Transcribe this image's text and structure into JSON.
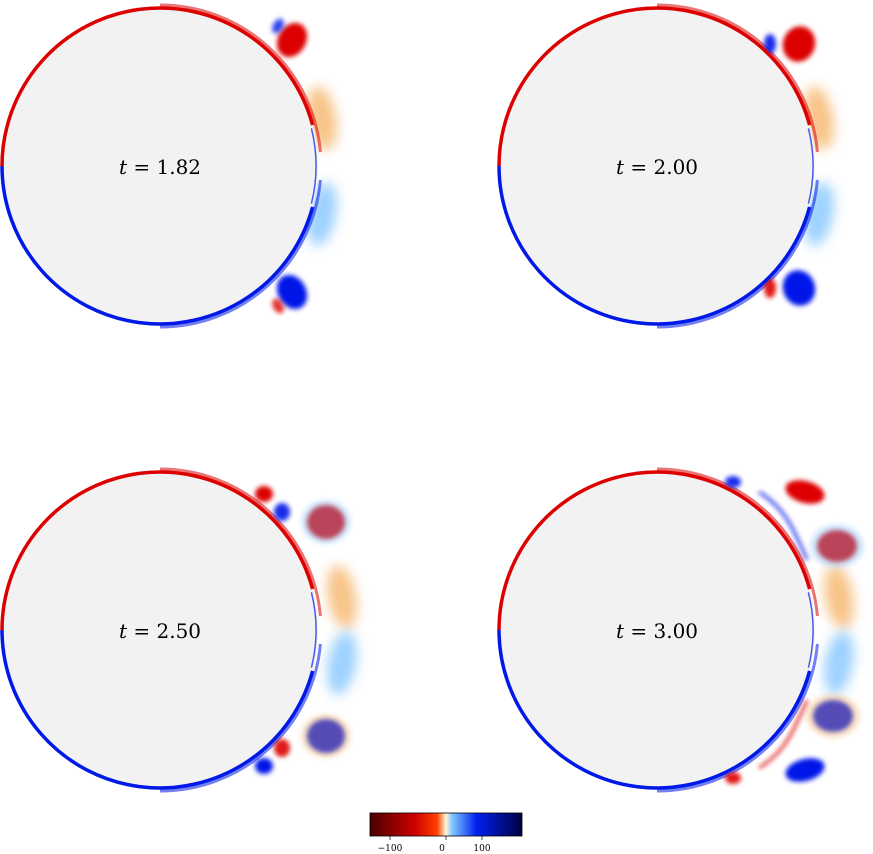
{
  "panels": [
    {
      "time_label": "t = 1.82",
      "t": "t",
      "value": "1.82",
      "stage": 1
    },
    {
      "time_label": "t = 2.00",
      "t": "t",
      "value": "2.00",
      "stage": 2
    },
    {
      "time_label": "t = 2.50",
      "t": "t",
      "value": "2.50",
      "stage": 3
    },
    {
      "time_label": "t = 3.00",
      "t": "t",
      "value": "3.00",
      "stage": 4
    }
  ],
  "colorbar": {
    "tick_labels": [
      "−100",
      "0",
      "100"
    ],
    "colors": [
      "#5a0000",
      "#cc0000",
      "#ff2a00",
      "#fff1c8",
      "#ffffff",
      "#9fd4ff",
      "#0022ee",
      "#00005a"
    ]
  },
  "colors": {
    "cylinder_fill": "#f2f2f2",
    "positive_vorticity": "#dd0000",
    "negative_vorticity": "#0018e8",
    "light_positive": "#f5b060",
    "light_negative": "#7cc2ff"
  }
}
